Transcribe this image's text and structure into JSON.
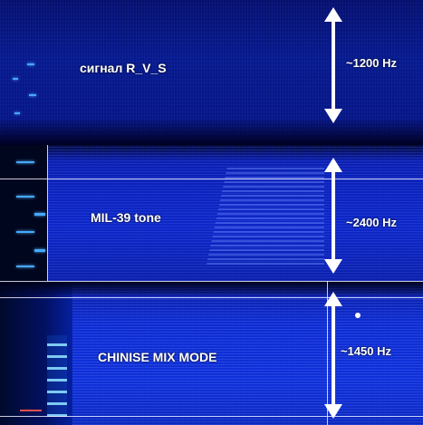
{
  "panels": [
    {
      "id": "top",
      "signal": "сигнал R_V_S",
      "frequency": "~1200 Hz"
    },
    {
      "id": "mid",
      "signal": "MIL-39 tone",
      "frequency": "~2400 Hz"
    },
    {
      "id": "bottom",
      "signal": "CHINISE MIX MODE",
      "frequency": "~1450 Hz"
    }
  ],
  "colors": {
    "spectrogram_base": "#0a22c0",
    "tone_marks": "#46a8ff",
    "arrow": "#ffffff",
    "guide_lines": "#ebebff"
  }
}
